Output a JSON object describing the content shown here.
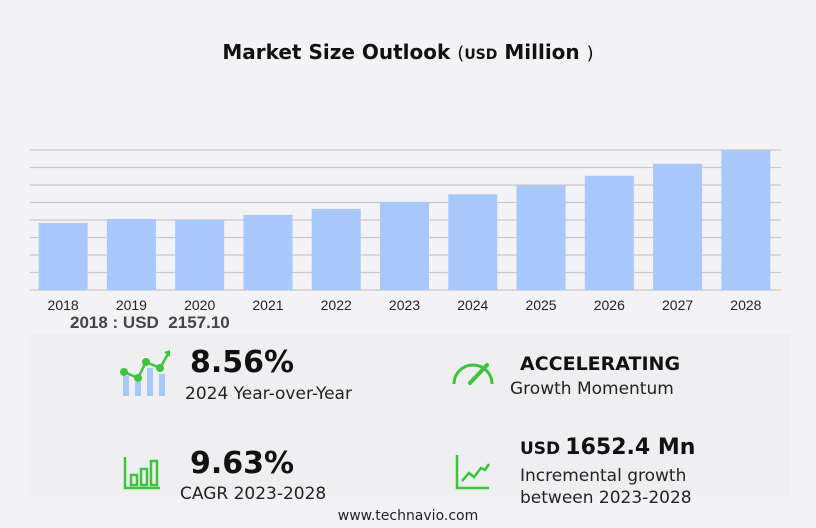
{
  "title": {
    "main": "Market Size Outlook",
    "open": "(",
    "unit": "USD",
    "unit2": "Million",
    "close": ")"
  },
  "chart_data": {
    "type": "bar",
    "categories": [
      "2018",
      "2019",
      "2020",
      "2021",
      "2022",
      "2023",
      "2024",
      "2025",
      "2026",
      "2027",
      "2028"
    ],
    "values": [
      2157.1,
      2286,
      2254,
      2415,
      2608,
      2833,
      3076,
      3360,
      3671,
      4057,
      4485.4
    ],
    "ylim": [
      0,
      4500
    ],
    "grid": true,
    "gridlines": 8,
    "bar_color": "#a8c8fc",
    "xlabel": "",
    "ylabel": ""
  },
  "first_year": {
    "label": "2018 : USD",
    "value": "2157.10"
  },
  "stats": {
    "yoy": {
      "value": "8.56%",
      "label": "2024 Year-over-Year",
      "icon": "line-bar-growth-icon"
    },
    "momentum": {
      "value": "ACCELERATING",
      "label": "Growth Momentum",
      "icon": "speedometer-icon"
    },
    "cagr": {
      "value": "9.63%",
      "label": "CAGR 2023-2028",
      "icon": "bar-chart-growth-icon"
    },
    "incremental": {
      "prefix": "USD",
      "value": "1652.4 Mn",
      "label1": "Incremental growth",
      "label2": "between 2023-2028",
      "icon": "trend-line-icon"
    }
  },
  "accent": "#3cc43c",
  "footer": "www.technavio.com"
}
